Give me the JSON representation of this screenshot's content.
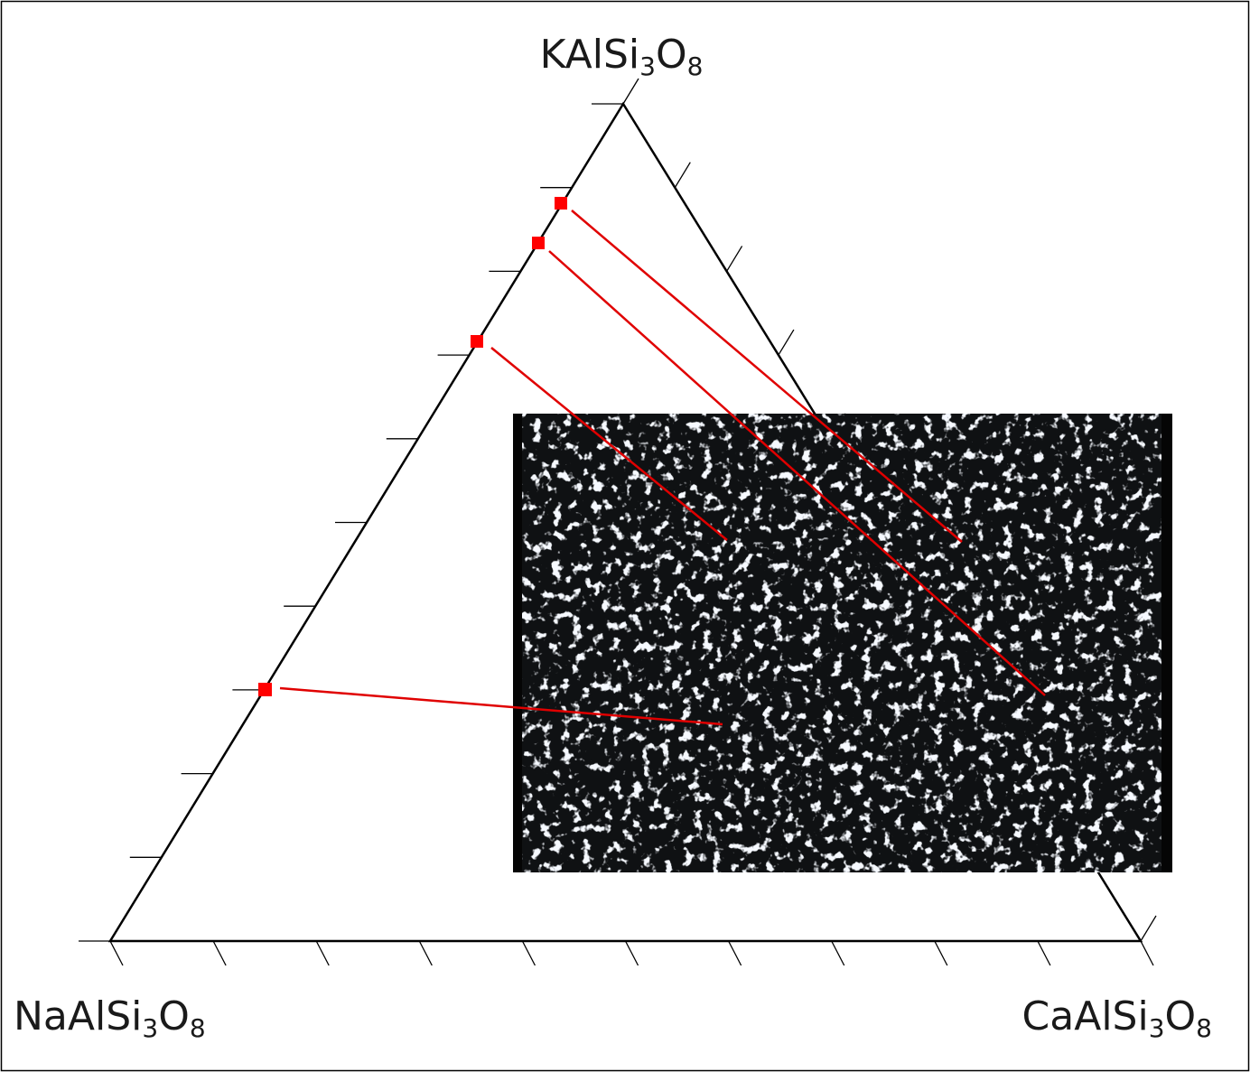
{
  "top_label": [
    "KAlSi",
    "3",
    "O",
    "8"
  ],
  "left_label": [
    "NaAlSi",
    "3",
    "O",
    "8"
  ],
  "right_label": [
    "CaAlSi",
    "3",
    "O",
    "8"
  ]
}
